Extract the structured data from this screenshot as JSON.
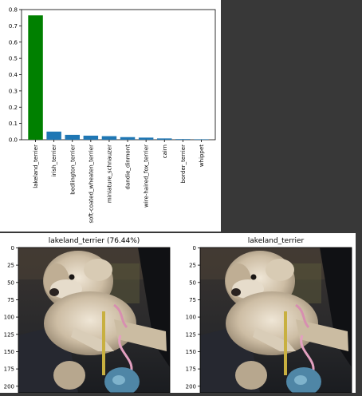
{
  "chart_data": [
    {
      "type": "bar",
      "categories": [
        "lakeland_terrier",
        "irish_terrier",
        "bedlington_terrier",
        "soft-coated_wheaten_terrier",
        "miniature_schnauzer",
        "dandie_dinmont",
        "wire-haired_fox_terrier",
        "cairn",
        "border_terrier",
        "whippet"
      ],
      "values": [
        0.7644,
        0.05,
        0.03,
        0.025,
        0.022,
        0.016,
        0.013,
        0.008,
        0.004,
        0.003
      ],
      "bar_colors": [
        "#008000",
        "#1f77b4",
        "#1f77b4",
        "#1f77b4",
        "#1f77b4",
        "#1f77b4",
        "#1f77b4",
        "#1f77b4",
        "#1f77b4",
        "#1f77b4"
      ],
      "ylim": [
        0,
        0.8
      ],
      "yticks": [
        "0.0",
        "0.1",
        "0.2",
        "0.3",
        "0.4",
        "0.5",
        "0.6",
        "0.7",
        "0.8"
      ],
      "title": "",
      "xlabel": "",
      "ylabel": ""
    },
    {
      "type": "image",
      "title": "lakeland_terrier (76.44%)",
      "yticks": [
        "0",
        "25",
        "50",
        "75",
        "100",
        "125",
        "150",
        "175",
        "200"
      ]
    },
    {
      "type": "image",
      "title": "lakeland_terrier",
      "yticks": [
        "0",
        "25",
        "50",
        "75",
        "100",
        "125",
        "150",
        "175",
        "200"
      ]
    }
  ]
}
